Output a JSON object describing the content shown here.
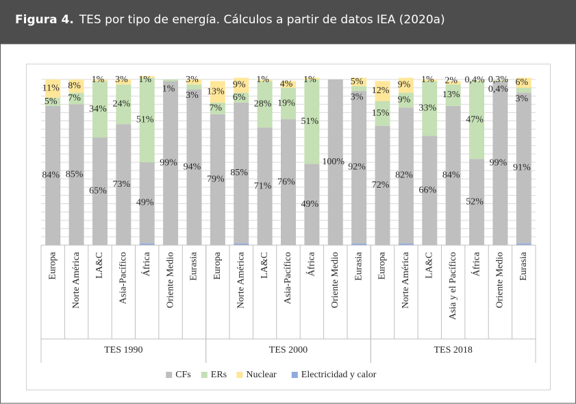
{
  "figure_label": "Figura 4.",
  "chart_data": {
    "type": "stacked_bar",
    "title": "TES por tipo de energía. Cálculos a partir de datos IEA (2020a)",
    "category_groups": [
      {
        "name": "TES 1990",
        "categories": [
          "Europa",
          "Norte América",
          "LA&C",
          "Asia-Pacífico",
          "África",
          "Oriente Medio",
          "Eurasia"
        ]
      },
      {
        "name": "TES 2000",
        "categories": [
          "Europa",
          "Norte América",
          "LA&C",
          "Asia-Pacífico",
          "África",
          "Oriente Medio",
          "Eurasia"
        ]
      },
      {
        "name": "TES 2018",
        "categories": [
          "Europa",
          "Norte América",
          "LA&C",
          "Asia y el Pacífico",
          "África",
          "Oriente Medio",
          "Eurasia"
        ]
      }
    ],
    "series": [
      {
        "name": "CFs",
        "color": "#bfbfbf",
        "values": [
          84,
          85,
          65,
          73,
          49,
          99,
          94,
          79,
          85,
          71,
          76,
          49,
          100,
          92,
          72,
          82,
          66,
          84,
          52,
          99,
          91
        ],
        "value_labels": [
          "84%",
          "85%",
          "65%",
          "73%",
          "49%",
          "99%",
          "94%",
          "79%",
          "85%",
          "71%",
          "76%",
          "49%",
          "100%",
          "92%",
          "72%",
          "82%",
          "66%",
          "84%",
          "52%",
          "99%",
          "91%"
        ]
      },
      {
        "name": "ERs",
        "color": "#c5e0b4",
        "values": [
          5,
          7,
          34,
          24,
          51,
          1,
          3,
          7,
          6,
          28,
          19,
          51,
          null,
          3,
          15,
          9,
          33,
          13,
          47,
          0.4,
          3
        ],
        "value_labels": [
          "5%",
          "7%",
          "34%",
          "24%",
          "51%",
          "1%",
          "3%",
          "7%",
          "6%",
          "28%",
          "19%",
          "51%",
          null,
          "3%",
          "15%",
          "9%",
          "33%",
          "13%",
          "47%",
          "0,4%",
          "3%"
        ]
      },
      {
        "name": "Nuclear",
        "color": "#ffe699",
        "values": [
          11,
          8,
          1,
          3,
          1,
          null,
          3,
          13,
          9,
          1,
          4,
          1,
          null,
          5,
          12,
          9,
          1,
          2,
          0.4,
          0.3,
          6
        ],
        "value_labels": [
          "11%",
          "8%",
          "1%",
          "3%",
          "1%",
          null,
          "3%",
          "13%",
          "9%",
          "1%",
          "4%",
          "1%",
          null,
          "5%",
          "12%",
          "9%",
          "1%",
          "2%",
          "0,4%",
          "0,3%",
          "6%"
        ]
      },
      {
        "name": "Electricidad y calor",
        "color": "#8faadc",
        "values": [
          null,
          null,
          null,
          null,
          1,
          null,
          null,
          null,
          1,
          null,
          null,
          null,
          null,
          1,
          null,
          1,
          null,
          null,
          null,
          null,
          1
        ]
      }
    ],
    "ylim": [
      0,
      100
    ],
    "yticks": [
      0,
      5,
      10,
      15,
      20,
      25,
      30,
      35,
      40,
      45,
      50,
      55,
      60,
      65,
      70,
      75,
      80,
      85,
      90,
      95,
      100
    ],
    "grid": true
  }
}
